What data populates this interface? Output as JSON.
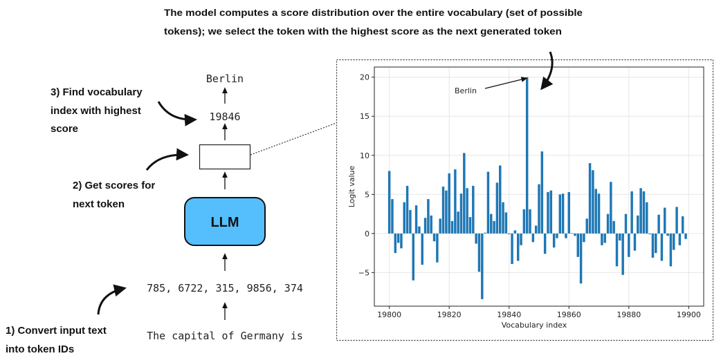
{
  "caption": {
    "line1": "The model computes a score distribution over the entire vocabulary (set of possible",
    "line2": "tokens); we select the token with the highest score as the next generated token"
  },
  "pipeline": {
    "output_token": "Berlin",
    "output_index": "19846",
    "model_label": "LLM",
    "token_ids": "785, 6722, 315, 9856, 374",
    "input_text": "The capital of Germany is",
    "model_color": "#55bffd"
  },
  "steps": {
    "step3": [
      "3) Find vocabulary",
      "index with highest",
      "score"
    ],
    "step2": [
      "2) Get scores for",
      "next token"
    ],
    "step1": [
      "1) Convert input text",
      "into token IDs"
    ]
  },
  "chart_data": {
    "type": "bar",
    "xlabel": "Vocabulary index",
    "ylabel": "Logit value",
    "x_start": 19800,
    "xlim": [
      19795,
      19905
    ],
    "ylim": [
      -9.3,
      21.3
    ],
    "xticks": [
      "19800",
      "19820",
      "19840",
      "19860",
      "19880",
      "19900"
    ],
    "yticks": [
      "−5",
      "0",
      "5",
      "10",
      "15",
      "20"
    ],
    "grid": true,
    "bar_color": "#1f77b4",
    "annotation": {
      "text": "Berlin",
      "x": 19846,
      "y": 20
    },
    "values": [
      8.0,
      4.4,
      -2.5,
      -1.2,
      -1.9,
      4.0,
      6.1,
      3.0,
      -6.0,
      3.6,
      0.9,
      -4.0,
      2.0,
      4.4,
      2.3,
      -1.0,
      -3.7,
      1.9,
      6.0,
      5.5,
      7.7,
      1.6,
      8.2,
      2.8,
      5.1,
      10.3,
      5.8,
      2.1,
      6.1,
      -1.3,
      -4.9,
      -8.4,
      0.1,
      7.9,
      2.5,
      1.6,
      6.5,
      8.7,
      4.0,
      2.7,
      -0.1,
      -3.9,
      0.4,
      -3.5,
      -1.5,
      3.1,
      20.0,
      3.1,
      -1.1,
      1.0,
      6.3,
      10.5,
      -2.6,
      5.3,
      5.5,
      -1.8,
      -0.6,
      5.0,
      5.1,
      -0.6,
      5.3,
      0.05,
      -0.3,
      -3.0,
      -6.4,
      -1.1,
      1.9,
      9.0,
      8.1,
      5.7,
      5.1,
      -1.5,
      -1.2,
      2.5,
      6.6,
      1.6,
      -4.2,
      -0.9,
      -5.3,
      2.5,
      -3.0,
      5.4,
      -2.2,
      2.3,
      5.8,
      5.4,
      4.0,
      -0.1,
      -3.1,
      -2.5,
      2.4,
      -3.5,
      3.3,
      -0.3,
      -4.2,
      -2.1,
      3.4,
      -1.5,
      2.2,
      -0.7
    ]
  }
}
